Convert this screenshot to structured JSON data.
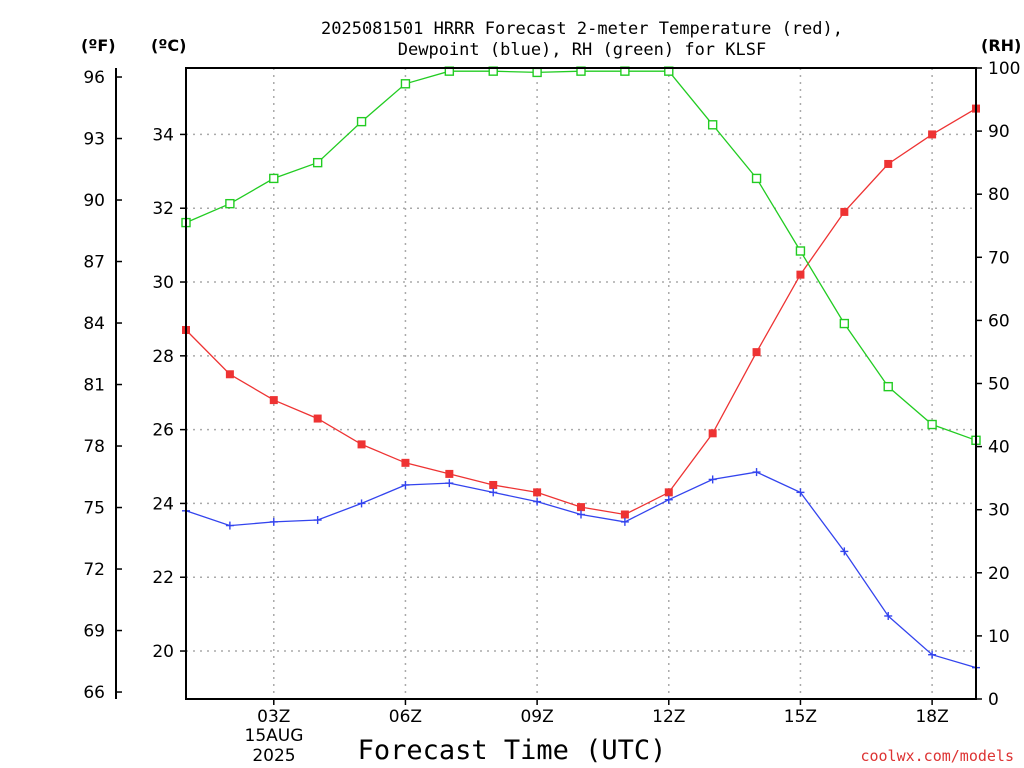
{
  "chart_data": {
    "type": "line",
    "title_line1": "2025081501 HRRR Forecast 2-meter Temperature (red),",
    "title_line2": "Dewpoint (blue), RH (green) for KLSF",
    "xlabel": "Forecast Time (UTC)",
    "date_label": [
      "15AUG",
      "2025"
    ],
    "credit": "coolwx.com/models",
    "axis_units": {
      "fahrenheit": "(ºF)",
      "celsius": "(ºC)",
      "rh": "(RH)"
    },
    "x": [
      1,
      2,
      3,
      4,
      5,
      6,
      7,
      8,
      9,
      10,
      11,
      12,
      13,
      14,
      15,
      16,
      17,
      18,
      19
    ],
    "x_ticks": [
      {
        "x": 3,
        "label": "03Z"
      },
      {
        "x": 6,
        "label": "06Z"
      },
      {
        "x": 9,
        "label": "09Z"
      },
      {
        "x": 12,
        "label": "12Z"
      },
      {
        "x": 15,
        "label": "15Z"
      },
      {
        "x": 18,
        "label": "18Z"
      }
    ],
    "xlim": [
      1,
      19
    ],
    "celsius_ticks": [
      20,
      22,
      24,
      26,
      28,
      30,
      32,
      34
    ],
    "celsius_ylim": [
      18.7,
      35.8
    ],
    "fahrenheit_ticks": [
      66,
      69,
      72,
      75,
      78,
      81,
      84,
      87,
      90,
      93,
      96
    ],
    "rh_ticks": [
      0,
      10,
      20,
      30,
      40,
      50,
      60,
      70,
      80,
      90,
      100
    ],
    "rh_ylim": [
      0,
      100
    ],
    "grid": true,
    "series": [
      {
        "name": "Temperature",
        "axis": "celsius",
        "color": "#ee3333",
        "marker": "filled-square",
        "values": [
          28.7,
          27.5,
          26.8,
          26.3,
          25.6,
          25.1,
          24.8,
          24.5,
          24.3,
          23.9,
          23.7,
          24.3,
          25.9,
          28.1,
          30.2,
          31.9,
          33.2,
          34.0,
          34.7
        ]
      },
      {
        "name": "Dewpoint",
        "axis": "celsius",
        "color": "#3344ee",
        "marker": "plus",
        "values": [
          23.8,
          23.4,
          23.5,
          23.55,
          24.0,
          24.5,
          24.55,
          24.3,
          24.05,
          23.7,
          23.5,
          24.1,
          24.65,
          24.85,
          24.3,
          22.7,
          20.95,
          19.9,
          19.55
        ]
      },
      {
        "name": "RH",
        "axis": "rh",
        "color": "#22cc22",
        "marker": "open-square",
        "values": [
          75.5,
          78.5,
          82.5,
          85.0,
          91.5,
          97.5,
          99.5,
          99.5,
          99.3,
          99.5,
          99.5,
          99.5,
          91.0,
          82.5,
          71.0,
          59.5,
          49.5,
          43.5,
          41.0
        ]
      }
    ]
  }
}
